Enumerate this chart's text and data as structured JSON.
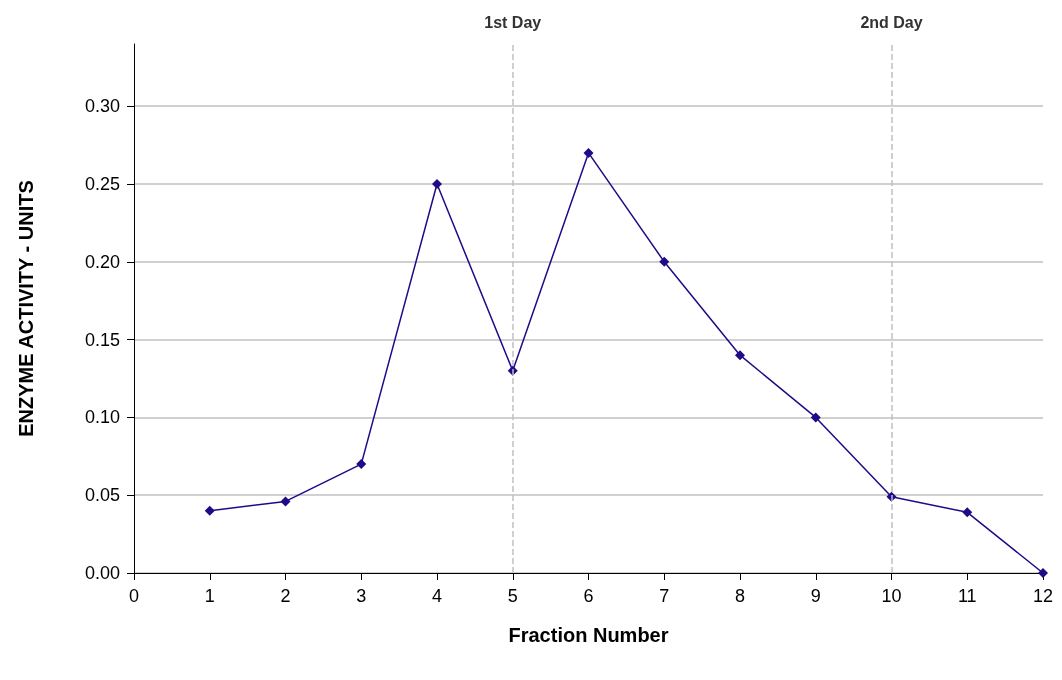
{
  "chart_data": {
    "type": "line",
    "xlabel": "Fraction Number",
    "ylabel": "ENZYME ACTIVITY - UNITS",
    "x": [
      1,
      2,
      3,
      4,
      5,
      6,
      7,
      8,
      9,
      10,
      11,
      12
    ],
    "series": [
      {
        "color": "#1f0a88",
        "values": [
          0.04,
          0.046,
          0.07,
          0.25,
          0.13,
          0.27,
          0.2,
          0.14,
          0.1,
          0.049,
          0.039,
          0
        ]
      }
    ],
    "xlim": [
      0,
      12
    ],
    "xticks": [
      0,
      1,
      2,
      3,
      4,
      5,
      6,
      7,
      8,
      9,
      10,
      11,
      12
    ],
    "ylim": [
      0,
      0.34
    ],
    "yticks": [
      {
        "value": 0,
        "label": "0.00"
      },
      {
        "value": 0.05,
        "label": "0.05"
      },
      {
        "value": 0.1,
        "label": "0.10"
      },
      {
        "value": 0.15,
        "label": "0.15"
      },
      {
        "value": 0.2,
        "label": "0.20"
      },
      {
        "value": 0.25,
        "label": "0.25"
      },
      {
        "value": 0.3,
        "label": "0.30"
      }
    ],
    "grid": "y",
    "marker": "diamond",
    "line_style": "solid",
    "ref_lines": [
      {
        "axis": "x",
        "value": 5,
        "label": "1st Day",
        "color": "#c0c0c0",
        "line_style": "dashed"
      },
      {
        "axis": "x",
        "value": 10,
        "label": "2nd Day",
        "color": "#c0c0c0",
        "line_style": "dashed"
      }
    ]
  }
}
